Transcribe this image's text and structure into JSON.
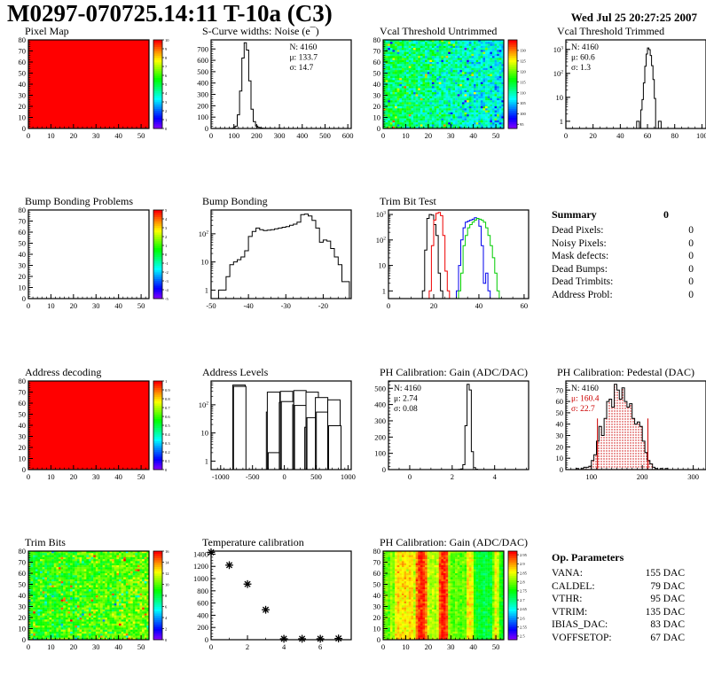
{
  "header": {
    "title": "M0297-070725.14:11 T-10a (C3)",
    "date": "Wed Jul 25 20:27:25 2007"
  },
  "summary": {
    "title": "Summary",
    "value": "0",
    "rows": [
      {
        "label": "Dead Pixels:",
        "value": "0"
      },
      {
        "label": "Noisy Pixels:",
        "value": "0"
      },
      {
        "label": "Mask defects:",
        "value": "0"
      },
      {
        "label": "Dead Bumps:",
        "value": "0"
      },
      {
        "label": "Dead Trimbits:",
        "value": "0"
      },
      {
        "label": "Address Probl:",
        "value": "0"
      }
    ]
  },
  "op_params": {
    "title": "Op. Parameters",
    "rows": [
      {
        "label": "VANA:",
        "value": "155 DAC"
      },
      {
        "label": "CALDEL:",
        "value": "79 DAC"
      },
      {
        "label": "VTHR:",
        "value": "95 DAC"
      },
      {
        "label": "VTRIM:",
        "value": "135 DAC"
      },
      {
        "label": "IBIAS_DAC:",
        "value": "83 DAC"
      },
      {
        "label": "VOFFSETOP:",
        "value": "67 DAC"
      }
    ]
  },
  "chart_data": [
    {
      "id": "pixel-map",
      "type": "heatmap",
      "title": "Pixel Map",
      "fill": "solid",
      "value": 10,
      "xmin": 0,
      "xmax": 53.5,
      "xticks": [
        0,
        10,
        20,
        30,
        40,
        50
      ],
      "xminor": 2,
      "ymin": 0,
      "ymax": 80,
      "yticks": [
        0,
        10,
        20,
        30,
        40,
        50,
        60,
        70,
        80
      ],
      "yminor": 2,
      "palette": {
        "min": 0,
        "max": 10
      },
      "colorbar": [
        10,
        9,
        8,
        7,
        6,
        5,
        4,
        3,
        2,
        1,
        0
      ]
    },
    {
      "id": "scurve-noise",
      "type": "hist",
      "title": "S-Curve widths: Noise (e¯)",
      "xmin": 0,
      "xmax": 615,
      "xticks": [
        0,
        100,
        200,
        300,
        400,
        500,
        600
      ],
      "xminor": 20,
      "ymin": 0,
      "ymax": 780,
      "yticks": [
        0,
        100,
        200,
        300,
        400,
        500,
        600,
        700
      ],
      "yminor": 20,
      "x0": 85,
      "bw": 10,
      "counts": [
        1,
        4,
        20,
        120,
        330,
        620,
        755,
        690,
        420,
        170,
        60,
        22,
        9,
        4,
        2,
        1,
        1,
        1,
        0,
        0,
        0,
        2,
        0
      ],
      "stats": [
        {
          "t": "N: 4160",
          "c": "#000"
        },
        {
          "t": "μ: 133.7",
          "c": "#000"
        },
        {
          "t": "σ: 14.7",
          "c": "#000"
        }
      ],
      "statsPos": "right"
    },
    {
      "id": "vcal-untrimmed",
      "type": "heatmap",
      "title": "Vcal Threshold Untrimmed",
      "fill": "noise",
      "xmin": 0,
      "xmax": 53.5,
      "xticks": [
        0,
        10,
        20,
        30,
        40,
        50
      ],
      "xminor": 2,
      "ymin": 0,
      "ymax": 80,
      "yticks": [
        0,
        10,
        20,
        30,
        40,
        50,
        60,
        70,
        80
      ],
      "yminor": 2,
      "noise": {
        "base": 114,
        "grad": -7,
        "spread": 4.5,
        "hot": 0.03,
        "hotBoost": 13,
        "cold": 0.02,
        "coldBoost": -9
      },
      "seed": 11,
      "palette": {
        "min": 93,
        "max": 135
      },
      "colorbar": [
        130,
        125,
        120,
        115,
        110,
        105,
        100,
        95
      ]
    },
    {
      "id": "vcal-trimmed",
      "type": "hist",
      "title": "Vcal Threshold Trimmed",
      "xmin": 0,
      "xmax": 103,
      "xticks": [
        0,
        20,
        40,
        60,
        80,
        100
      ],
      "xminor": 5,
      "ylog": true,
      "ymin": 0.5,
      "ymax": 2500,
      "ylogticks": [
        [
          1,
          "1",
          ""
        ],
        [
          10,
          "10",
          ""
        ],
        [
          100,
          "10",
          "2"
        ],
        [
          1000,
          "10",
          "3"
        ]
      ],
      "x0": 50,
      "bw": 1,
      "counts": [
        0,
        0,
        1,
        1,
        0,
        3,
        8,
        40,
        200,
        640,
        1150,
        980,
        560,
        210,
        55,
        9,
        0,
        0,
        1,
        1,
        0
      ],
      "stats": [
        {
          "t": "N: 4160",
          "c": "#000"
        },
        {
          "t": "μ: 60.6",
          "c": "#000"
        },
        {
          "t": "σ:  1.3",
          "c": "#000"
        }
      ],
      "statsPos": "left"
    },
    {
      "id": "bump-problems",
      "type": "heatmap",
      "title": "Bump Bonding Problems",
      "fill": "none",
      "xmin": 0,
      "xmax": 53.5,
      "xticks": [
        0,
        10,
        20,
        30,
        40,
        50
      ],
      "xminor": 2,
      "ymin": 0,
      "ymax": 80,
      "yticks": [
        0,
        10,
        20,
        30,
        40,
        50,
        60,
        70,
        80
      ],
      "yminor": 2,
      "palette": {
        "min": -5,
        "max": 5
      },
      "colorbar": [
        5,
        4,
        3,
        2,
        1,
        0,
        -1,
        -2,
        -3,
        -4,
        -5
      ]
    },
    {
      "id": "bump-bonding",
      "type": "hist",
      "title": "Bump Bonding",
      "xmin": -50,
      "xmax": -12.5,
      "xticks": [
        -50,
        -40,
        -30,
        -20
      ],
      "xminor": 2,
      "ylog": true,
      "ymin": 0.5,
      "ymax": 700,
      "ylogticks": [
        [
          1,
          "1",
          ""
        ],
        [
          10,
          "10",
          ""
        ],
        [
          100,
          "10",
          "2"
        ]
      ],
      "x0": -48,
      "bw": 1,
      "counts": [
        1,
        1,
        3,
        8,
        10,
        12,
        15,
        25,
        80,
        120,
        160,
        140,
        130,
        135,
        140,
        150,
        160,
        170,
        180,
        200,
        220,
        260,
        480,
        500,
        430,
        300,
        160,
        50,
        60,
        55,
        30,
        15,
        8,
        2,
        2
      ]
    },
    {
      "id": "trimbit-test",
      "type": "multihist",
      "title": "Trim Bit Test",
      "xmin": 0,
      "xmax": 62,
      "xticks": [
        0,
        20,
        40,
        60
      ],
      "xminor": 5,
      "ylog": true,
      "ymin": 0.5,
      "ymax": 1500,
      "ylogticks": [
        [
          1,
          "1",
          ""
        ],
        [
          10,
          "10",
          ""
        ],
        [
          100,
          "10",
          "2"
        ],
        [
          1000,
          "10",
          "3"
        ]
      ],
      "series": [
        {
          "color": "#000000",
          "x0": 15,
          "bw": 1,
          "counts": [
            1,
            40,
            700,
            1000,
            950,
            400,
            150,
            5,
            1
          ]
        },
        {
          "color": "#ee0000",
          "x0": 18,
          "bw": 1,
          "counts": [
            1,
            60,
            600,
            1100,
            1200,
            900,
            150,
            6,
            1
          ]
        },
        {
          "color": "#0000ee",
          "x0": 30,
          "bw": 1,
          "counts": [
            1,
            10,
            100,
            300,
            500,
            550,
            600,
            650,
            750,
            700,
            350,
            60,
            2,
            5,
            1
          ]
        },
        {
          "color": "#00cc00",
          "x0": 31,
          "bw": 1,
          "counts": [
            1,
            5,
            60,
            150,
            300,
            400,
            500,
            600,
            700,
            650,
            600,
            500,
            300,
            150,
            60,
            20,
            5,
            1
          ]
        }
      ]
    },
    {
      "id": "addr-decoding",
      "type": "heatmap",
      "title": "Address decoding",
      "fill": "solid",
      "value": 1,
      "xmin": 0,
      "xmax": 53.5,
      "xticks": [
        0,
        10,
        20,
        30,
        40,
        50
      ],
      "xminor": 2,
      "ymin": 0,
      "ymax": 80,
      "yticks": [
        0,
        10,
        20,
        30,
        40,
        50,
        60,
        70,
        80
      ],
      "yminor": 2,
      "palette": {
        "min": 0,
        "max": 1
      },
      "colorbar": [
        1,
        0.9,
        0.8,
        0.7,
        0.6,
        0.5,
        0.4,
        0.3,
        0.2,
        0.1,
        0
      ]
    },
    {
      "id": "addr-levels",
      "type": "bars",
      "title": "Address Levels",
      "xmin": -1150,
      "xmax": 1050,
      "xticks": [
        -1000,
        -500,
        0,
        500,
        1000
      ],
      "xminor": 100,
      "ylog": true,
      "ymin": 0.5,
      "ymax": 700,
      "ylogticks": [
        [
          1,
          "1",
          ""
        ],
        [
          10,
          "10",
          ""
        ],
        [
          100,
          "10",
          "2"
        ]
      ],
      "barw": 14,
      "bars": [
        [
          -712,
          500
        ],
        [
          -700,
          450
        ],
        [
          -185,
          55
        ],
        [
          -170,
          280
        ],
        [
          -156,
          2
        ],
        [
          18,
          120
        ],
        [
          35,
          300
        ],
        [
          50,
          130
        ],
        [
          228,
          100
        ],
        [
          245,
          320
        ],
        [
          258,
          95
        ],
        [
          418,
          16
        ],
        [
          438,
          280
        ],
        [
          452,
          35
        ],
        [
          585,
          180
        ],
        [
          600,
          55
        ],
        [
          778,
          150
        ],
        [
          793,
          18
        ]
      ]
    },
    {
      "id": "ph-gain-hist",
      "type": "hist",
      "title": "PH Calibration: Gain (ADC/DAC)",
      "xmin": -1,
      "xmax": 5.6,
      "xticks": [
        0,
        2,
        4
      ],
      "xminor": 0.5,
      "ymin": 0,
      "ymax": 545,
      "yticks": [
        0,
        100,
        200,
        300,
        400,
        500
      ],
      "yminor": 20,
      "x0": 2.3,
      "bw": 0.1,
      "counts": [
        1,
        4,
        30,
        270,
        525,
        490,
        110,
        12,
        2
      ],
      "stats": [
        {
          "t": "N: 4160",
          "c": "#000"
        },
        {
          "t": "μ: 2.74",
          "c": "#000"
        },
        {
          "t": "σ: 0.08",
          "c": "#000"
        }
      ],
      "statsPos": "left"
    },
    {
      "id": "ph-pedestal",
      "type": "hist",
      "title": "PH Calibration: Pedestal (DAC)",
      "xmin": 50,
      "xmax": 325,
      "xticks": [
        100,
        200,
        300
      ],
      "xminor": 10,
      "ymin": 0,
      "ymax": 78,
      "yticks": [
        0,
        10,
        20,
        30,
        40,
        50,
        60,
        70
      ],
      "yminor": 2,
      "x0": 70,
      "bw": 5,
      "dotfill": "#cc0000",
      "counts": [
        1,
        0,
        1,
        2,
        2,
        3,
        8,
        13,
        25,
        38,
        30,
        45,
        60,
        62,
        55,
        75,
        70,
        62,
        72,
        60,
        55,
        58,
        45,
        40,
        42,
        38,
        25,
        15,
        8,
        5,
        2,
        1,
        0,
        1,
        0,
        1
      ],
      "vlines": [
        {
          "x": 112,
          "y": 45,
          "c": "#cc0000"
        },
        {
          "x": 211,
          "y": 45,
          "c": "#cc0000"
        }
      ],
      "stats": [
        {
          "t": "N: 4160",
          "c": "#000"
        },
        {
          "t": "μ: 160.4",
          "c": "#cc0000"
        },
        {
          "t": "σ: 22.7",
          "c": "#cc0000"
        }
      ],
      "statsPos": "left"
    },
    {
      "id": "trim-bits",
      "type": "heatmap",
      "title": "Trim Bits",
      "fill": "noise",
      "xmin": 0,
      "xmax": 53.5,
      "xticks": [
        0,
        10,
        20,
        30,
        40,
        50
      ],
      "xminor": 2,
      "ymin": 0,
      "ymax": 80,
      "yticks": [
        0,
        10,
        20,
        30,
        40,
        50,
        60,
        70,
        80
      ],
      "yminor": 2,
      "noise": {
        "base": 9.0,
        "grad": 1.3,
        "spread": 1.6,
        "hot": 0.025,
        "hotBoost": 4.5,
        "cold": 0.015,
        "coldBoost": -4
      },
      "seed": 77,
      "palette": {
        "min": 0,
        "max": 16
      },
      "colorbar": [
        16,
        14,
        12,
        10,
        8,
        6,
        4,
        2,
        0
      ]
    },
    {
      "id": "temp-calib",
      "type": "scatter",
      "title": "Temperature calibration",
      "xmin": 0,
      "xmax": 7.7,
      "xticks": [
        0,
        2,
        4,
        6
      ],
      "xminor": 1,
      "ymin": 0,
      "ymax": 1450,
      "yticks": [
        0,
        200,
        400,
        600,
        800,
        1000,
        1200,
        1400
      ],
      "yminor": 50,
      "points": [
        [
          0,
          1430
        ],
        [
          1,
          1220
        ],
        [
          2,
          910
        ],
        [
          3,
          490
        ],
        [
          4,
          15
        ],
        [
          5,
          15
        ],
        [
          6,
          15
        ],
        [
          7,
          20
        ]
      ]
    },
    {
      "id": "ph-gain-map",
      "type": "heatmap",
      "title": "PH Calibration: Gain (ADC/DAC)",
      "fill": "stripes",
      "xmin": 0,
      "xmax": 53.5,
      "xticks": [
        0,
        10,
        20,
        30,
        40,
        50
      ],
      "xminor": 2,
      "ymin": 0,
      "ymax": 80,
      "yticks": [
        0,
        10,
        20,
        30,
        40,
        50,
        60,
        70,
        80
      ],
      "yminor": 2,
      "seed": 42,
      "spread": 0.024,
      "col_values": [
        2.8,
        2.8,
        2.78,
        2.82,
        2.8,
        2.86,
        2.88,
        2.86,
        2.87,
        2.88,
        2.86,
        2.88,
        2.87,
        2.84,
        2.92,
        2.95,
        2.96,
        2.95,
        2.92,
        2.84,
        2.82,
        2.83,
        2.82,
        2.84,
        2.93,
        2.96,
        2.96,
        2.93,
        2.82,
        2.79,
        2.78,
        2.8,
        2.79,
        2.78,
        2.8,
        2.79,
        2.86,
        2.87,
        2.85,
        2.76,
        2.74,
        2.73,
        2.74,
        2.72,
        2.73,
        2.74,
        2.73,
        2.8,
        2.86,
        2.84,
        2.77,
        2.75
      ],
      "palette": {
        "min": 2.48,
        "max": 2.97
      },
      "colorbar": [
        "2.95",
        "2.9",
        "2.85",
        "2.8",
        "2.75",
        "2.7",
        "2.65",
        "2.6",
        "2.55",
        "2.5"
      ]
    }
  ]
}
